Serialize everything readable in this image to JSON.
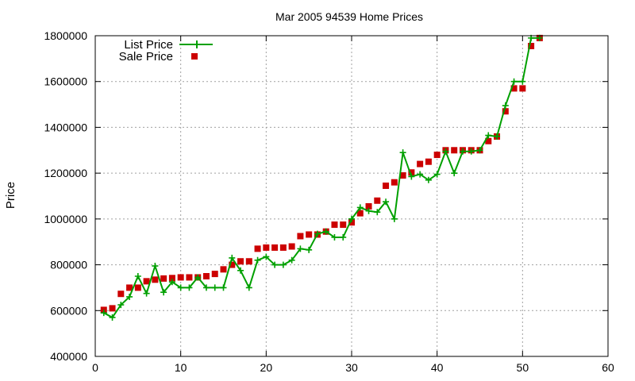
{
  "chart_data": {
    "type": "line",
    "title": "Mar 2005 94539 Home Prices",
    "xlabel": "",
    "ylabel": "Price",
    "xlim": [
      0,
      60
    ],
    "ylim": [
      400000,
      1800000
    ],
    "xticks": [
      0,
      10,
      20,
      30,
      40,
      50,
      60
    ],
    "yticks": [
      400000,
      600000,
      800000,
      1000000,
      1200000,
      1400000,
      1600000,
      1800000
    ],
    "grid": true,
    "legend_position": "top-left",
    "series": [
      {
        "name": "List Price",
        "style": "line-points",
        "color": "#00a000",
        "marker": "plus",
        "x": [
          1,
          2,
          3,
          4,
          5,
          6,
          7,
          8,
          9,
          10,
          11,
          12,
          13,
          14,
          15,
          16,
          17,
          18,
          19,
          20,
          21,
          22,
          23,
          24,
          25,
          26,
          27,
          28,
          29,
          30,
          31,
          32,
          33,
          34,
          35,
          36,
          37,
          38,
          39,
          40,
          41,
          42,
          43,
          44,
          45,
          46,
          47,
          48,
          49,
          50,
          51,
          52
        ],
        "y": [
          590000,
          570000,
          625000,
          660000,
          750000,
          675000,
          795000,
          680000,
          725000,
          700000,
          700000,
          745000,
          700000,
          700000,
          700000,
          830000,
          775000,
          700000,
          820000,
          835000,
          800000,
          800000,
          820000,
          870000,
          865000,
          935000,
          945000,
          920000,
          920000,
          1000000,
          1050000,
          1035000,
          1030000,
          1075000,
          1000000,
          1290000,
          1185000,
          1195000,
          1170000,
          1195000,
          1295000,
          1200000,
          1295000,
          1295000,
          1300000,
          1365000,
          1360000,
          1495000,
          1600000,
          1600000,
          1790000,
          1790000
        ]
      },
      {
        "name": "Sale Price",
        "style": "points",
        "color": "#cc0000",
        "marker": "square",
        "x": [
          1,
          2,
          3,
          4,
          5,
          6,
          7,
          8,
          9,
          10,
          11,
          12,
          13,
          14,
          15,
          16,
          17,
          18,
          19,
          20,
          21,
          22,
          23,
          24,
          25,
          26,
          27,
          28,
          29,
          30,
          31,
          32,
          33,
          34,
          35,
          36,
          37,
          38,
          39,
          40,
          41,
          42,
          43,
          44,
          45,
          46,
          47,
          48,
          49,
          50,
          51,
          52
        ],
        "y": [
          603000,
          610000,
          673000,
          700000,
          700000,
          728000,
          735000,
          740000,
          742000,
          745000,
          745000,
          745000,
          750000,
          760000,
          780000,
          800000,
          815000,
          815000,
          870000,
          875000,
          875000,
          875000,
          880000,
          925000,
          932000,
          932000,
          945000,
          975000,
          975000,
          985000,
          1025000,
          1055000,
          1080000,
          1145000,
          1160000,
          1190000,
          1203000,
          1240000,
          1250000,
          1280000,
          1300000,
          1300000,
          1300000,
          1300000,
          1300000,
          1340000,
          1360000,
          1470000,
          1570000,
          1570000,
          1755000,
          1790000
        ]
      }
    ]
  }
}
